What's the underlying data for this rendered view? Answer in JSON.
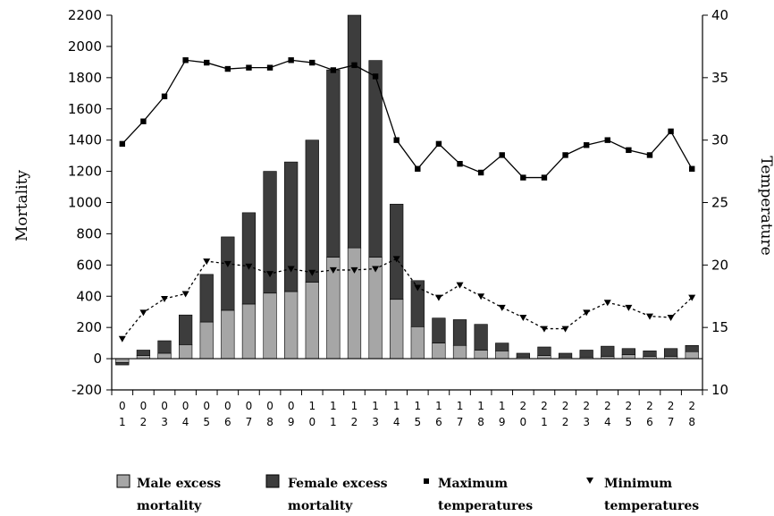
{
  "chart_data": {
    "type": "bar",
    "categories": [
      "01",
      "02",
      "03",
      "04",
      "05",
      "06",
      "07",
      "08",
      "09",
      "10",
      "11",
      "12",
      "13",
      "14",
      "15",
      "16",
      "17",
      "18",
      "19",
      "20",
      "21",
      "22",
      "23",
      "24",
      "25",
      "26",
      "27",
      "28"
    ],
    "series": [
      {
        "name": "Male excess mortality",
        "kind": "stacked-bar",
        "axis": "left",
        "color": "#a6a6a6",
        "values": [
          -25,
          20,
          35,
          90,
          235,
          310,
          350,
          420,
          430,
          490,
          650,
          710,
          650,
          380,
          205,
          100,
          85,
          55,
          50,
          10,
          20,
          10,
          10,
          15,
          25,
          15,
          15,
          45
        ]
      },
      {
        "name": "Female excess mortality",
        "kind": "stacked-bar",
        "axis": "left",
        "color": "#3d3d3d",
        "values": [
          -15,
          35,
          80,
          190,
          305,
          470,
          585,
          780,
          830,
          910,
          1200,
          1490,
          1260,
          610,
          295,
          160,
          165,
          165,
          50,
          25,
          55,
          25,
          45,
          65,
          40,
          35,
          50,
          40
        ]
      },
      {
        "name": "Maximum temperatures",
        "kind": "line",
        "axis": "right",
        "color": "#000000",
        "values": [
          29.7,
          31.5,
          33.5,
          36.4,
          36.2,
          35.7,
          35.8,
          35.8,
          36.4,
          36.2,
          35.6,
          36.0,
          35.1,
          30.0,
          27.7,
          29.7,
          28.1,
          27.4,
          28.8,
          27.0,
          27.0,
          28.8,
          29.6,
          30.0,
          29.2,
          28.8,
          30.7,
          27.7
        ]
      },
      {
        "name": "Minimum temperatures",
        "kind": "line",
        "axis": "right",
        "color": "#000000",
        "values": [
          14.1,
          16.2,
          17.3,
          17.7,
          20.3,
          20.1,
          19.9,
          19.3,
          19.7,
          19.4,
          19.6,
          19.6,
          19.7,
          20.5,
          18.2,
          17.4,
          18.4,
          17.5,
          16.6,
          15.8,
          14.9,
          14.9,
          16.2,
          17.0,
          16.6,
          15.9,
          15.8,
          17.4
        ]
      }
    ],
    "xlabel": "",
    "ylabel": "Mortality",
    "ylabel_right": "Temperature",
    "ylim": [
      -200,
      2200
    ],
    "ylim_right": [
      10,
      40
    ],
    "yticks": [
      "-200",
      "0",
      "200",
      "400",
      "600",
      "800",
      "1000",
      "1200",
      "1400",
      "1600",
      "1800",
      "2000",
      "2200"
    ],
    "yticks_right": [
      "10",
      "15",
      "20",
      "25",
      "30",
      "35",
      "40"
    ],
    "grid": false,
    "legend_position": "bottom"
  },
  "legend": {
    "male_line1": "Male excess",
    "male_line2": "mortality",
    "female_line1": "Female excess",
    "female_line2": "mortality",
    "max_line1": "Maximum",
    "max_line2": "temperatures",
    "min_line1": "Minimum",
    "min_line2": "temperatures"
  }
}
